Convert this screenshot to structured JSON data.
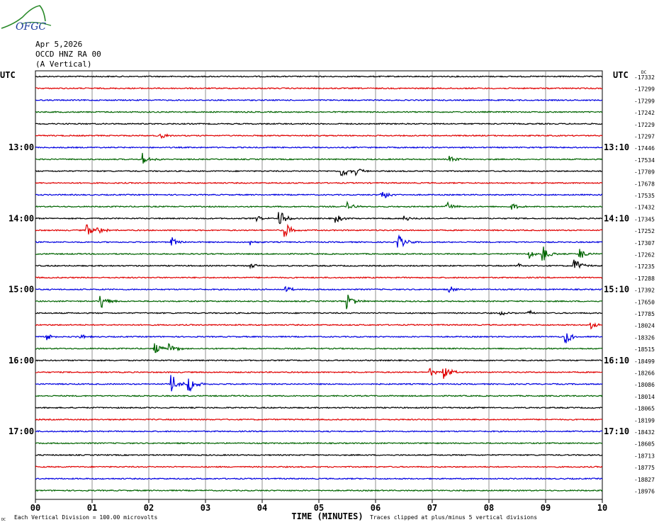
{
  "logo": {
    "text": "OFGC",
    "icon": "mountain-logo-icon"
  },
  "header": {
    "date": "Apr 5,2026",
    "station": "OCCD HNZ RA 00",
    "component": "(A Vertical)"
  },
  "chart_data": {
    "type": "line",
    "plot_kind": "helicorder seismogram",
    "utc_label_left": "UTC",
    "utc_label_right": "UTC",
    "unit_mark": "DC",
    "xlabel": "TIME (MINUTES)",
    "x_ticks": [
      "00",
      "01",
      "02",
      "03",
      "04",
      "05",
      "06",
      "07",
      "08",
      "09",
      "10"
    ],
    "xlim": [
      0,
      10
    ],
    "left_time_labels": [
      {
        "row": 6,
        "text": "13:00"
      },
      {
        "row": 12,
        "text": "14:00"
      },
      {
        "row": 18,
        "text": "15:00"
      },
      {
        "row": 24,
        "text": "16:00"
      },
      {
        "row": 30,
        "text": "17:00"
      }
    ],
    "right_time_labels": [
      {
        "row": 6,
        "text": "13:10"
      },
      {
        "row": 12,
        "text": "14:10"
      },
      {
        "row": 18,
        "text": "15:10"
      },
      {
        "row": 24,
        "text": "16:10"
      },
      {
        "row": 30,
        "text": "17:10"
      }
    ],
    "trace_colors": [
      "#000000",
      "#e00000",
      "#0000e0",
      "#006400"
    ],
    "trace_offsets": [
      "-17332",
      "-17299",
      "-17299",
      "-17242",
      "-17229",
      "-17297",
      "-17446",
      "-17534",
      "-17709",
      "-17678",
      "-17535",
      "-17432",
      "-17345",
      "-17252",
      "-17307",
      "-17262",
      "-17235",
      "-17288",
      "-17392",
      "-17650",
      "-17785",
      "-18024",
      "-18326",
      "-18515",
      "-18499",
      "-18266",
      "-18086",
      "-18014",
      "-18065",
      "-18199",
      "-18432",
      "-18605",
      "-18713",
      "-18775",
      "-18827",
      "-18976"
    ],
    "events": [
      {
        "row": 5,
        "minute": 2.2,
        "amp": 0.5
      },
      {
        "row": 7,
        "minute": 1.9,
        "amp": 0.7
      },
      {
        "row": 7,
        "minute": 7.3,
        "amp": 0.5
      },
      {
        "row": 8,
        "minute": 5.4,
        "amp": 0.8
      },
      {
        "row": 8,
        "minute": 5.65,
        "amp": 0.5
      },
      {
        "row": 10,
        "minute": 6.1,
        "amp": 0.9
      },
      {
        "row": 11,
        "minute": 5.5,
        "amp": 0.5
      },
      {
        "row": 11,
        "minute": 7.25,
        "amp": 0.6
      },
      {
        "row": 11,
        "minute": 8.4,
        "amp": 0.4
      },
      {
        "row": 12,
        "minute": 3.9,
        "amp": 0.3
      },
      {
        "row": 12,
        "minute": 4.3,
        "amp": 1.0
      },
      {
        "row": 12,
        "minute": 5.3,
        "amp": 0.5
      },
      {
        "row": 12,
        "minute": 6.5,
        "amp": 0.4
      },
      {
        "row": 13,
        "minute": 0.9,
        "amp": 0.8
      },
      {
        "row": 13,
        "minute": 1.1,
        "amp": 0.5
      },
      {
        "row": 13,
        "minute": 4.4,
        "amp": 0.9
      },
      {
        "row": 14,
        "minute": 2.4,
        "amp": 0.6
      },
      {
        "row": 14,
        "minute": 3.8,
        "amp": 0.4
      },
      {
        "row": 14,
        "minute": 6.4,
        "amp": 1.0
      },
      {
        "row": 15,
        "minute": 8.7,
        "amp": 0.6
      },
      {
        "row": 15,
        "minute": 8.95,
        "amp": 1.0
      },
      {
        "row": 15,
        "minute": 9.6,
        "amp": 0.7
      },
      {
        "row": 16,
        "minute": 3.8,
        "amp": 0.3
      },
      {
        "row": 16,
        "minute": 8.5,
        "amp": 0.4
      },
      {
        "row": 16,
        "minute": 9.5,
        "amp": 1.0
      },
      {
        "row": 18,
        "minute": 4.4,
        "amp": 0.4
      },
      {
        "row": 18,
        "minute": 7.3,
        "amp": 0.4
      },
      {
        "row": 19,
        "minute": 1.15,
        "amp": 1.0
      },
      {
        "row": 19,
        "minute": 5.5,
        "amp": 1.0
      },
      {
        "row": 20,
        "minute": 8.2,
        "amp": 0.3
      },
      {
        "row": 20,
        "minute": 8.7,
        "amp": 0.3
      },
      {
        "row": 21,
        "minute": 9.8,
        "amp": 0.5
      },
      {
        "row": 22,
        "minute": 0.2,
        "amp": 0.5
      },
      {
        "row": 22,
        "minute": 0.8,
        "amp": 0.3
      },
      {
        "row": 22,
        "minute": 9.35,
        "amp": 0.9
      },
      {
        "row": 23,
        "minute": 2.1,
        "amp": 0.8
      },
      {
        "row": 23,
        "minute": 2.35,
        "amp": 0.8
      },
      {
        "row": 25,
        "minute": 6.95,
        "amp": 0.5
      },
      {
        "row": 25,
        "minute": 7.2,
        "amp": 1.0
      },
      {
        "row": 26,
        "minute": 2.4,
        "amp": 1.2
      },
      {
        "row": 26,
        "minute": 2.7,
        "amp": 1.1
      }
    ],
    "footer_mark": "DC",
    "footer_left": "Each Vertical Division =  100.00 microvolts",
    "footer_right": "Traces clipped at plus/minus 5 vertical divisions"
  }
}
